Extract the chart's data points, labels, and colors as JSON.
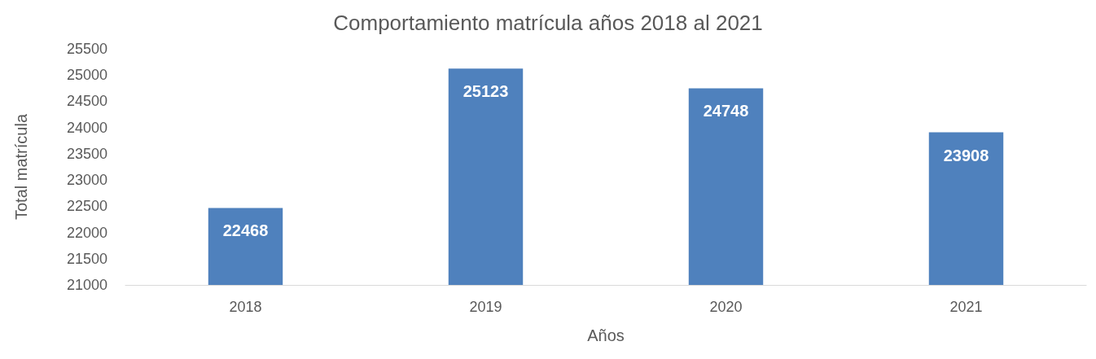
{
  "chart_data": {
    "type": "bar",
    "title": "Comportamiento matrícula años 2018 al 2021",
    "xlabel": "Años",
    "ylabel": "Total matrícula",
    "categories": [
      "2018",
      "2019",
      "2020",
      "2021"
    ],
    "values": [
      22468,
      25123,
      24748,
      23908
    ],
    "color": "#4f81bd",
    "ylim": [
      21000,
      25500
    ],
    "yticks": [
      21000,
      21500,
      22000,
      22500,
      23000,
      23500,
      24000,
      24500,
      25000,
      25500
    ],
    "grid": false,
    "data_labels": true
  }
}
